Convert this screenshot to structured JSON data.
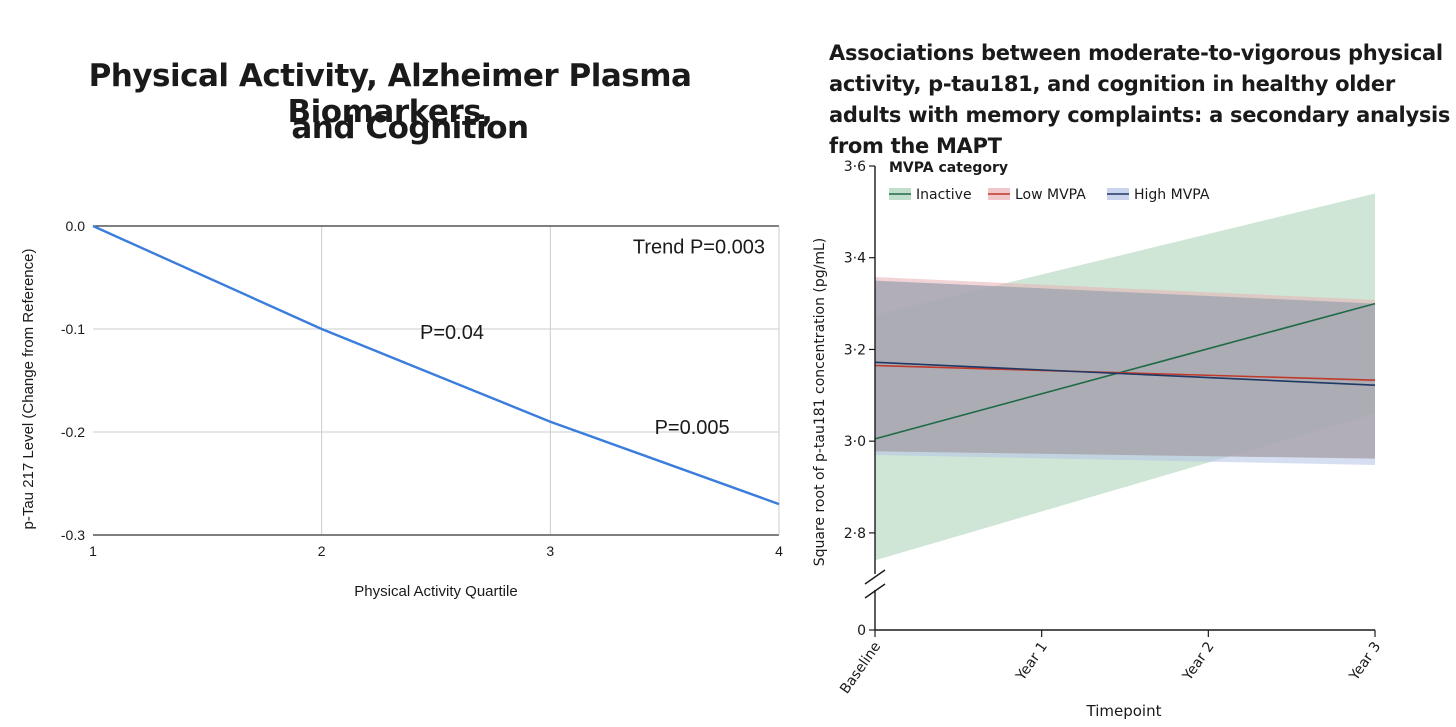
{
  "left_title": {
    "line1": "Physical Activity, Alzheimer Plasma Biomarkers,",
    "line2": "and Cognition"
  },
  "right_title": "Associations between moderate-to-vigorous physical activity, p-tau181, and cognition in healthy older adults with memory complaints: a secondary analysis from the MAPT",
  "chart_data": [
    {
      "type": "line",
      "title": "Physical Activity, Alzheimer Plasma Biomarkers, and Cognition",
      "xlabel": "Physical Activity Quartile",
      "ylabel": "p-Tau 217 Level (Change from Reference)",
      "x": [
        1,
        2,
        3,
        4
      ],
      "x_tick_labels": [
        "1",
        "2",
        "3",
        "4"
      ],
      "xlim": [
        1,
        4
      ],
      "ylim": [
        -0.3,
        0.0
      ],
      "y_ticks": [
        0.0,
        -0.1,
        -0.2,
        -0.3
      ],
      "y_tick_labels": [
        "0.0",
        "-0.1",
        "-0.2",
        "-0.3"
      ],
      "grid": true,
      "color": "#3b7ddd",
      "series": [
        {
          "name": "p-Tau 217",
          "values": [
            0.0,
            -0.1,
            -0.19,
            -0.27
          ]
        }
      ],
      "annotations": [
        {
          "text": "Trend P=0.003",
          "x": 3.65,
          "y": -0.02
        },
        {
          "text": "P=0.04",
          "x": 2.57,
          "y": -0.103
        },
        {
          "text": "P=0.005",
          "x": 3.62,
          "y": -0.195
        }
      ]
    },
    {
      "type": "line",
      "title": "Associations between moderate-to-vigorous physical activity, p-tau181, and cognition in healthy older adults with memory complaints: a secondary analysis from the MAPT",
      "xlabel": "Timepoint",
      "ylabel": "Square root of p-tau181 concentration (pg/mL)",
      "x": [
        0,
        1,
        2,
        3
      ],
      "categories": [
        "Baseline",
        "Year 1",
        "Year 2",
        "Year 3"
      ],
      "ylim": [
        2.73,
        3.6
      ],
      "y_ticks": [
        2.8,
        3.0,
        3.2,
        3.4,
        3.6
      ],
      "y_tick_labels": [
        "2·8",
        "3·0",
        "3·2",
        "3·4",
        "3·6"
      ],
      "axis_break": {
        "zero_label": "0"
      },
      "legend_title": "MVPA category",
      "legend_position": "top-left",
      "series": [
        {
          "name": "Inactive",
          "color": "#1f6b45",
          "band_color": "#a8d1b5",
          "start": 3.005,
          "end": 3.3,
          "lower": [
            2.74,
            3.06
          ],
          "upper": [
            3.275,
            3.54
          ]
        },
        {
          "name": "Low MVPA",
          "color": "#c0392b",
          "band_color": "#e9b0b5",
          "start": 3.165,
          "end": 3.133,
          "lower": [
            2.978,
            2.962
          ],
          "upper": [
            3.358,
            3.308
          ]
        },
        {
          "name": "High MVPA",
          "color": "#1f3864",
          "band_color": "#b5c2e6",
          "start": 3.172,
          "end": 3.122,
          "lower": [
            2.97,
            2.948
          ],
          "upper": [
            3.35,
            3.3
          ]
        }
      ]
    }
  ]
}
